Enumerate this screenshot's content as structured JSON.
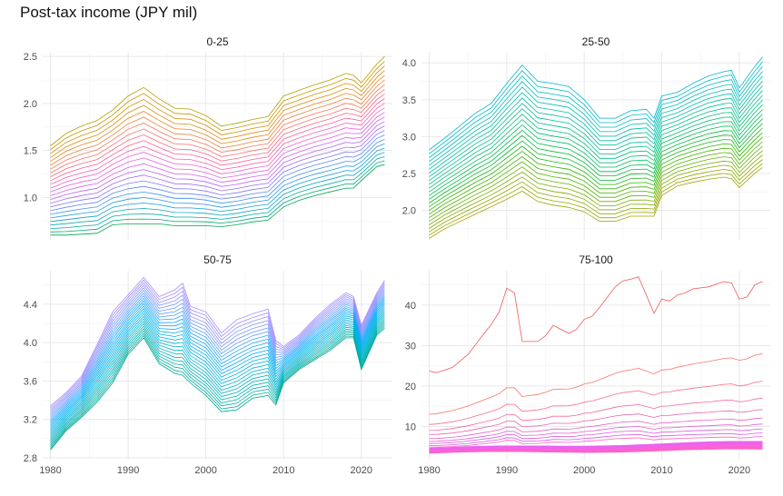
{
  "title": "Post-tax income (JPY mil)",
  "chart_data": [
    {
      "type": "line",
      "title": "0-25",
      "x": [
        1980,
        1982,
        1984,
        1986,
        1988,
        1990,
        1992,
        1994,
        1996,
        1998,
        2000,
        2002,
        2004,
        2006,
        2008,
        2010,
        2012,
        2014,
        2016,
        2018,
        2019,
        2020,
        2022,
        2023
      ],
      "base": [
        0.6,
        0.6,
        0.61,
        0.62,
        0.71,
        0.72,
        0.72,
        0.72,
        0.7,
        0.7,
        0.7,
        0.69,
        0.71,
        0.74,
        0.76,
        0.9,
        0.97,
        1.02,
        1.06,
        1.1,
        1.1,
        1.18,
        1.33,
        1.35
      ],
      "top": [
        1.55,
        1.68,
        1.76,
        1.82,
        1.93,
        2.08,
        2.17,
        2.05,
        1.95,
        1.94,
        1.87,
        1.76,
        1.79,
        1.83,
        1.86,
        2.08,
        2.14,
        2.2,
        2.25,
        2.32,
        2.3,
        2.22,
        2.42,
        2.5
      ],
      "n_series": 25,
      "ylim": [
        0.55,
        2.55
      ],
      "yticks": [
        1.0,
        1.5,
        2.0,
        2.5
      ],
      "ytick_labels": [
        "1.0",
        "1.5",
        "2.0",
        "2.5"
      ],
      "xlim": [
        1979,
        2024
      ],
      "xticks": [
        1980,
        1990,
        2000,
        2010,
        2020
      ],
      "show_x_labels": false,
      "colors": [
        "#00A651",
        "#00ADA6",
        "#1B9BE0",
        "#4F8EF7",
        "#9C6EF2",
        "#D062E8",
        "#F062C8",
        "#FF5F8E",
        "#F8766D",
        "#E88526",
        "#D49000",
        "#B79F00"
      ]
    },
    {
      "type": "line",
      "title": "25-50",
      "x": [
        1980,
        1982,
        1984,
        1986,
        1988,
        1990,
        1992,
        1994,
        1996,
        1998,
        2000,
        2002,
        2004,
        2006,
        2008,
        2009,
        2010,
        2012,
        2014,
        2016,
        2018,
        2019,
        2020,
        2022,
        2023
      ],
      "base": [
        1.62,
        1.75,
        1.85,
        1.95,
        2.05,
        2.15,
        2.26,
        2.12,
        2.07,
        2.04,
        1.98,
        1.85,
        1.85,
        1.92,
        1.92,
        1.92,
        2.2,
        2.33,
        2.38,
        2.42,
        2.45,
        2.43,
        2.31,
        2.5,
        2.58
      ],
      "top": [
        2.82,
        2.98,
        3.15,
        3.32,
        3.45,
        3.72,
        3.97,
        3.75,
        3.72,
        3.68,
        3.5,
        3.25,
        3.25,
        3.35,
        3.37,
        3.25,
        3.55,
        3.6,
        3.72,
        3.82,
        3.88,
        3.9,
        3.66,
        3.95,
        4.08
      ],
      "n_series": 25,
      "ylim": [
        1.6,
        4.15
      ],
      "yticks": [
        2.0,
        2.5,
        3.0,
        3.5,
        4.0
      ],
      "ytick_labels": [
        "2.0",
        "2.5",
        "3.0",
        "3.5",
        "4.0"
      ],
      "xlim": [
        1979,
        2024
      ],
      "xticks": [
        1980,
        1990,
        2000,
        2010,
        2020
      ],
      "show_x_labels": false,
      "colors": [
        "#A3A500",
        "#8BAA00",
        "#5EB300",
        "#2DB600",
        "#00BA38",
        "#00BE67",
        "#00C08B",
        "#00BFA4",
        "#00BCB8",
        "#00B8CB"
      ]
    },
    {
      "type": "line",
      "title": "50-75",
      "x": [
        1980,
        1982,
        1984,
        1986,
        1988,
        1990,
        1992,
        1994,
        1996,
        1997,
        1998,
        2000,
        2002,
        2004,
        2006,
        2008,
        2009,
        2010,
        2012,
        2014,
        2016,
        2018,
        2019,
        2020,
        2022,
        2023
      ],
      "base": [
        2.88,
        3.08,
        3.22,
        3.38,
        3.58,
        3.88,
        4.05,
        3.78,
        3.68,
        3.66,
        3.58,
        3.45,
        3.28,
        3.3,
        3.42,
        3.45,
        3.35,
        3.58,
        3.72,
        3.82,
        3.92,
        4.05,
        4.05,
        3.72,
        4.08,
        4.15
      ],
      "top": [
        3.34,
        3.48,
        3.65,
        3.98,
        4.32,
        4.5,
        4.68,
        4.48,
        4.55,
        4.62,
        4.38,
        4.32,
        4.1,
        4.24,
        4.3,
        4.35,
        4.02,
        3.96,
        4.08,
        4.25,
        4.4,
        4.52,
        4.48,
        4.18,
        4.52,
        4.65
      ],
      "n_series": 25,
      "ylim": [
        2.78,
        4.75
      ],
      "yticks": [
        2.8,
        3.2,
        3.6,
        4.0,
        4.4
      ],
      "ytick_labels": [
        "2.8",
        "3.2",
        "3.6",
        "4.0",
        "4.4"
      ],
      "xlim": [
        1979,
        2024
      ],
      "xticks": [
        1980,
        1990,
        2000,
        2010,
        2020
      ],
      "xtick_labels": [
        "1980",
        "1990",
        "2000",
        "2010",
        "2020"
      ],
      "show_x_labels": true,
      "colors": [
        "#00A98F",
        "#00AFA8",
        "#00B3BF",
        "#00B4D4",
        "#00B2E6",
        "#00ACF5",
        "#22A4FF",
        "#6A9BFF",
        "#8F91FF",
        "#A98BFF"
      ]
    },
    {
      "type": "line",
      "title": "75-100",
      "x": [
        1980,
        1981,
        1983,
        1985,
        1987,
        1988,
        1989,
        1990,
        1991,
        1992,
        1994,
        1995,
        1996,
        1997,
        1998,
        1999,
        2000,
        2001,
        2002,
        2004,
        2005,
        2006,
        2007,
        2008,
        2009,
        2010,
        2011,
        2012,
        2013,
        2014,
        2016,
        2018,
        2019,
        2020,
        2021,
        2022,
        2023
      ],
      "top": [
        23.7,
        23.3,
        24.6,
        27.8,
        32.8,
        35.2,
        38.2,
        44.2,
        43.0,
        31.0,
        31.0,
        32.4,
        35.0,
        34.0,
        33.0,
        34.0,
        36.5,
        37.2,
        39.5,
        44.5,
        46.0,
        46.4,
        47.0,
        42.5,
        38.0,
        41.5,
        41.0,
        42.5,
        43.0,
        44.0,
        44.5,
        45.8,
        45.5,
        41.5,
        42.0,
        45.0,
        45.8
      ],
      "lower_series": [
        {
          "name": "",
          "values_start": 13.0,
          "values_mid": 20.5,
          "values_end": 28.0
        },
        {
          "name": "",
          "values_start": 10.5,
          "values_mid": 16.0,
          "values_end": 21.2
        },
        {
          "name": "",
          "values_start": 9.0,
          "values_mid": 13.2,
          "values_end": 17.0
        },
        {
          "name": "",
          "values_start": 8.0,
          "values_mid": 11.3,
          "values_end": 14.2
        },
        {
          "name": "",
          "values_start": 7.0,
          "values_mid": 9.8,
          "values_end": 12.1
        },
        {
          "name": "",
          "values_start": 6.3,
          "values_mid": 8.7,
          "values_end": 10.6
        },
        {
          "name": "",
          "values_start": 5.8,
          "values_mid": 7.8,
          "values_end": 9.4
        },
        {
          "name": "",
          "values_start": 5.3,
          "values_mid": 7.0,
          "values_end": 8.4
        },
        {
          "name": "",
          "values_start": 4.9,
          "values_mid": 6.3,
          "values_end": 7.5
        }
      ],
      "dense_band": {
        "low_start": 3.4,
        "high_start": 4.6,
        "low_end": 4.3,
        "high_end": 6.2,
        "n": 15
      },
      "ylim": [
        1.8,
        48.5
      ],
      "yticks": [
        10,
        20,
        30,
        40
      ],
      "ytick_labels": [
        "10",
        "20",
        "30",
        "40"
      ],
      "xlim": [
        1979,
        2024
      ],
      "xticks": [
        1980,
        1990,
        2000,
        2010,
        2020
      ],
      "xtick_labels": [
        "1980",
        "1990",
        "2000",
        "2010",
        "2020"
      ],
      "show_x_labels": true,
      "colors": [
        "#F8766D",
        "#F5708A",
        "#F06BA0",
        "#EC66B2",
        "#E663C4",
        "#E05FD3",
        "#DA5BE0",
        "#D458EA",
        "#FF61C3",
        "#F763E0"
      ]
    }
  ]
}
